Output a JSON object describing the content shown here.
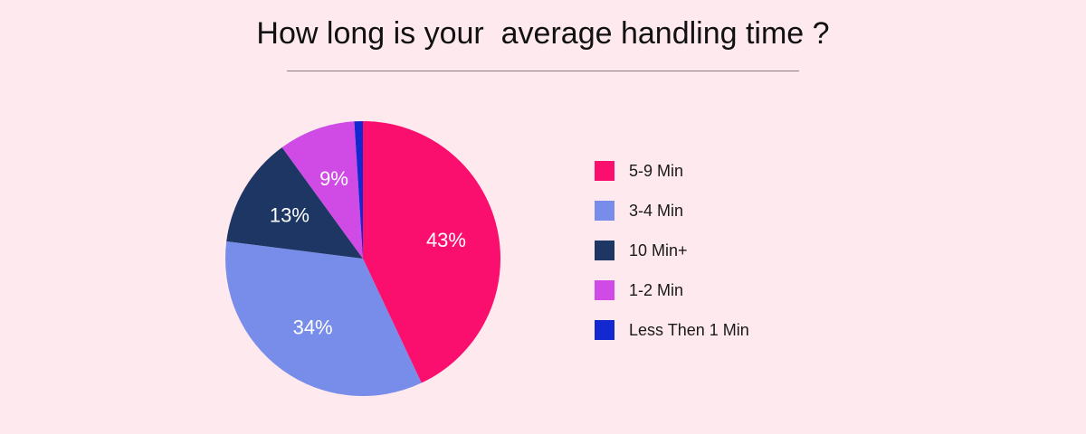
{
  "chart_data": {
    "type": "pie",
    "title": "How long is your  average handling time ?",
    "categories": [
      "5-9 Min",
      "3-4 Min",
      "10 Min+",
      "1-2 Min",
      "Less Then 1 Min"
    ],
    "values": [
      43,
      34,
      13,
      9,
      1
    ],
    "labels": [
      "43%",
      "34%",
      "13%",
      "9%",
      ""
    ],
    "colors": [
      "#fb0f6e",
      "#788de9",
      "#1d3664",
      "#d04be6",
      "#1428d0"
    ],
    "legend_position": "right",
    "start_angle": "top",
    "direction": "clockwise"
  }
}
